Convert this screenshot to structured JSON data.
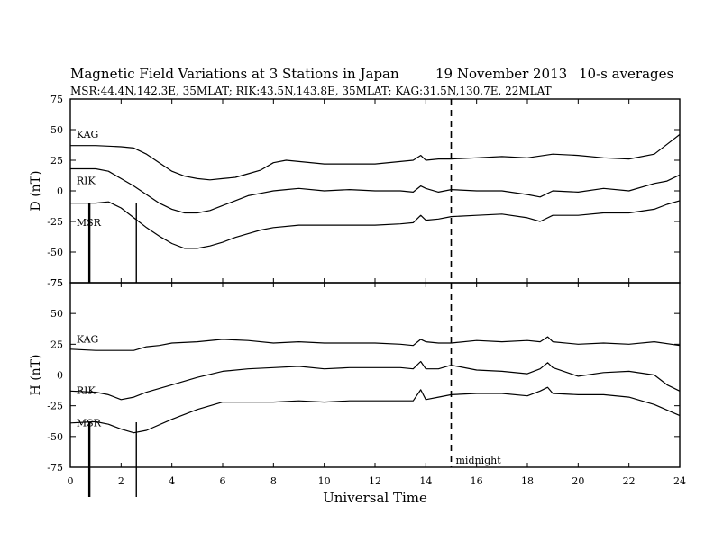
{
  "header": {
    "title": "Magnetic Field Variations at 3 Stations in Japan",
    "date": "19 November 2013",
    "averaging": "10-s averages",
    "stations_line": "MSR:44.4N,142.3E, 35MLAT;  RIK:43.5N,143.8E, 35MLAT;  KAG:31.5N,130.7E, 22MLAT"
  },
  "chart_data": {
    "type": "line",
    "xlabel": "Universal Time",
    "xlim": [
      0,
      24
    ],
    "x_ticks": [
      0,
      2,
      4,
      6,
      8,
      10,
      12,
      14,
      16,
      18,
      20,
      22,
      24
    ],
    "midnight_ut": 15,
    "midnight_label": "midnight",
    "event_markers_ut": [
      0.75,
      2.6
    ],
    "panels": [
      {
        "ylabel": "D (nT)",
        "ylim": [
          -75,
          75
        ],
        "y_ticks": [
          75,
          50,
          25,
          0,
          -25,
          -50,
          -75
        ],
        "series": [
          {
            "name": "KAG",
            "label_xy": [
              0.1,
              42
            ],
            "x": [
              0,
              1,
              2,
              2.5,
              3,
              3.5,
              4,
              4.5,
              5,
              5.5,
              6,
              6.5,
              7,
              7.5,
              8,
              8.5,
              9,
              10,
              11,
              12,
              13,
              13.5,
              13.8,
              14,
              14.5,
              15,
              16,
              17,
              18,
              19,
              20,
              21,
              22,
              23,
              23.5,
              24
            ],
            "y": [
              37,
              37,
              36,
              35,
              30,
              23,
              16,
              12,
              10,
              9,
              10,
              11,
              14,
              17,
              23,
              25,
              24,
              22,
              22,
              22,
              24,
              25,
              29,
              25,
              26,
              26,
              27,
              28,
              27,
              30,
              29,
              27,
              26,
              30,
              38,
              46
            ]
          },
          {
            "name": "RIK",
            "label_xy": [
              0.1,
              4
            ],
            "x": [
              0,
              1,
              1.5,
              2,
              2.5,
              3,
              3.5,
              4,
              4.5,
              5,
              5.5,
              6,
              6.5,
              7,
              7.5,
              8,
              8.5,
              9,
              10,
              11,
              12,
              13,
              13.5,
              13.8,
              14,
              14.5,
              15,
              16,
              17,
              18,
              18.5,
              19,
              20,
              21,
              22,
              23,
              23.5,
              24
            ],
            "y": [
              18,
              18,
              16,
              10,
              4,
              -3,
              -10,
              -15,
              -18,
              -18,
              -16,
              -12,
              -8,
              -4,
              -2,
              0,
              1,
              2,
              0,
              1,
              0,
              0,
              -1,
              4,
              2,
              -1,
              1,
              0,
              0,
              -3,
              -5,
              0,
              -1,
              2,
              0,
              6,
              8,
              13
            ]
          },
          {
            "name": "MSR",
            "label_xy": [
              0.1,
              -30
            ],
            "x": [
              0,
              1,
              1.5,
              2,
              2.5,
              3,
              3.5,
              4,
              4.5,
              5,
              5.5,
              6,
              6.5,
              7,
              7.5,
              8,
              9,
              10,
              11,
              12,
              13,
              13.5,
              13.8,
              14,
              14.5,
              15,
              16,
              17,
              18,
              18.5,
              19,
              20,
              21,
              22,
              23,
              23.5,
              24
            ],
            "y": [
              -10,
              -10,
              -9,
              -14,
              -22,
              -30,
              -37,
              -43,
              -47,
              -47,
              -45,
              -42,
              -38,
              -35,
              -32,
              -30,
              -28,
              -28,
              -28,
              -28,
              -27,
              -26,
              -20,
              -24,
              -23,
              -21,
              -20,
              -19,
              -22,
              -25,
              -20,
              -20,
              -18,
              -18,
              -15,
              -11,
              -8
            ]
          }
        ]
      },
      {
        "ylabel": "H (nT)",
        "ylim": [
          -75,
          75
        ],
        "y_ticks": [
          75,
          50,
          25,
          0,
          -25,
          -50,
          -75
        ],
        "series": [
          {
            "name": "KAG",
            "label_xy": [
              0.1,
              25
            ],
            "x": [
              0,
              1,
              2,
              2.5,
              3,
              3.5,
              4,
              5,
              6,
              7,
              8,
              9,
              10,
              11,
              12,
              13,
              13.5,
              13.8,
              14,
              14.5,
              15,
              16,
              17,
              18,
              18.5,
              18.8,
              19,
              20,
              21,
              22,
              23,
              24
            ],
            "y": [
              21,
              20,
              20,
              20,
              23,
              24,
              26,
              27,
              29,
              28,
              26,
              27,
              26,
              26,
              26,
              25,
              24,
              29,
              27,
              26,
              26,
              28,
              27,
              28,
              27,
              31,
              27,
              25,
              26,
              25,
              27,
              24
            ]
          },
          {
            "name": "RIK",
            "label_xy": [
              0.1,
              -17
            ],
            "x": [
              0,
              1,
              1.5,
              2,
              2.5,
              3,
              4,
              5,
              6,
              7,
              8,
              9,
              10,
              11,
              12,
              13,
              13.5,
              13.8,
              14,
              14.5,
              15,
              16,
              17,
              18,
              18.5,
              18.8,
              19,
              20,
              21,
              22,
              23,
              23.5,
              24
            ],
            "y": [
              -13,
              -14,
              -16,
              -20,
              -18,
              -14,
              -8,
              -2,
              3,
              5,
              6,
              7,
              5,
              6,
              6,
              6,
              5,
              11,
              5,
              5,
              8,
              4,
              3,
              1,
              5,
              10,
              6,
              -1,
              2,
              3,
              0,
              -8,
              -13
            ]
          },
          {
            "name": "MSR",
            "label_xy": [
              0.1,
              -43
            ],
            "x": [
              0,
              1,
              1.5,
              2,
              2.5,
              3,
              4,
              5,
              6,
              7,
              8,
              9,
              10,
              11,
              12,
              13,
              13.5,
              13.8,
              14,
              14.5,
              15,
              16,
              17,
              18,
              18.5,
              18.8,
              19,
              20,
              21,
              22,
              23,
              24
            ],
            "y": [
              -39,
              -38,
              -40,
              -44,
              -47,
              -45,
              -36,
              -28,
              -22,
              -22,
              -22,
              -21,
              -22,
              -21,
              -21,
              -21,
              -21,
              -12,
              -20,
              -18,
              -16,
              -15,
              -15,
              -17,
              -13,
              -10,
              -15,
              -16,
              -16,
              -18,
              -24,
              -33
            ]
          }
        ]
      }
    ]
  }
}
